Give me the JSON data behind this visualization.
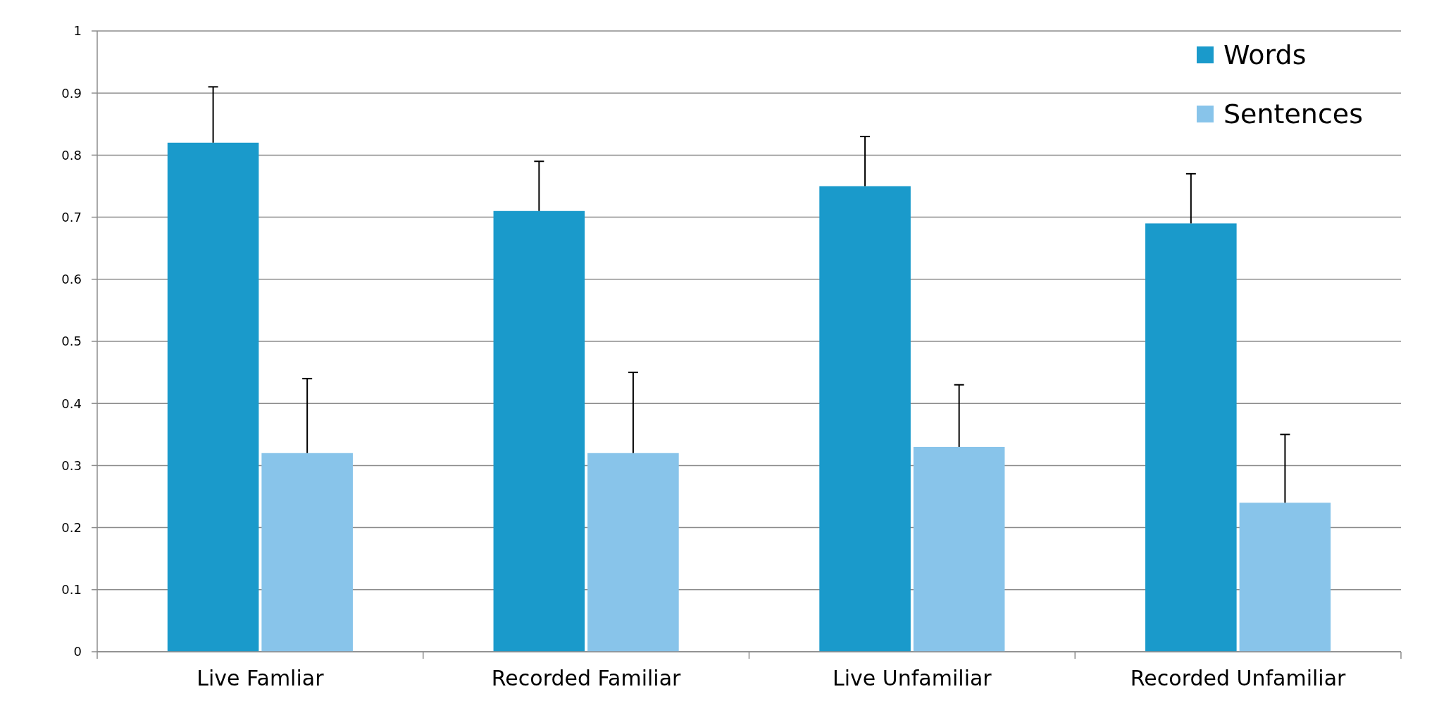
{
  "chart_data": {
    "type": "bar",
    "categories": [
      "Live Famliar",
      "Recorded Familiar",
      "Live Unfamiliar",
      "Recorded Unfamiliar"
    ],
    "series": [
      {
        "name": "Words",
        "color": "#1a9acb",
        "values": [
          0.82,
          0.71,
          0.75,
          0.69
        ],
        "errors": [
          [
            0.82,
            0.91
          ],
          [
            0.71,
            0.79
          ],
          [
            0.75,
            0.83
          ],
          [
            0.69,
            0.77
          ]
        ]
      },
      {
        "name": "Sentences",
        "color": "#88c4ea",
        "values": [
          0.32,
          0.32,
          0.33,
          0.24
        ],
        "errors": [
          [
            0.32,
            0.44
          ],
          [
            0.32,
            0.45
          ],
          [
            0.33,
            0.43
          ],
          [
            0.24,
            0.35
          ]
        ]
      }
    ],
    "ylim": [
      0,
      1
    ],
    "yticks": [
      0,
      0.1,
      0.2,
      0.3,
      0.4,
      0.5,
      0.6,
      0.7,
      0.8,
      0.9,
      1
    ],
    "grid": "y",
    "legend": "top right"
  }
}
